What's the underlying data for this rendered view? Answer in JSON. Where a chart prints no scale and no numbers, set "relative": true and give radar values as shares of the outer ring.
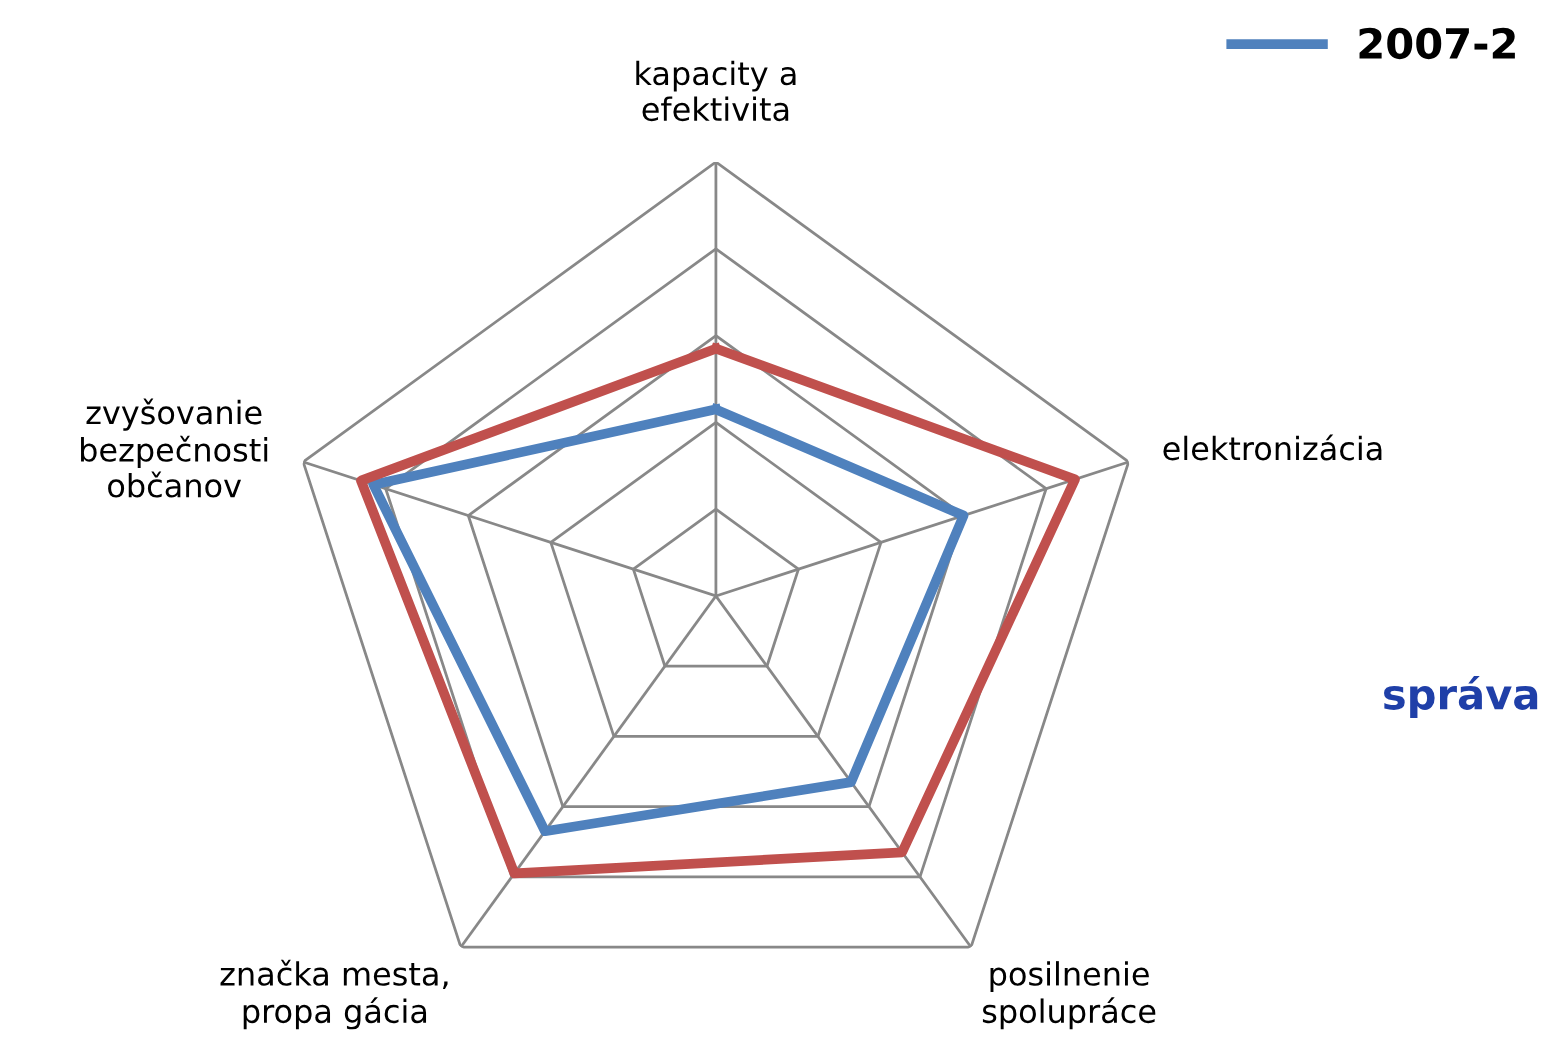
{
  "chart_data": {
    "type": "radar",
    "relative": true,
    "grid": true,
    "legend": "top right",
    "categories": [
      "kapacity a efektivita",
      "elektronizácia",
      "posilnenie spolupráce",
      "značka mesta, propa gácia",
      "zvyšovanie bezpečnosti občanov"
    ],
    "series": [
      {
        "name": "2007-2",
        "color": "#4f81bd",
        "values": [
          0.43,
          0.6,
          0.53,
          0.67,
          0.83
        ]
      },
      {
        "color": "#c0504d",
        "values": [
          0.57,
          0.87,
          0.73,
          0.79,
          0.86
        ]
      }
    ],
    "annotations": [
      "správa"
    ]
  }
}
